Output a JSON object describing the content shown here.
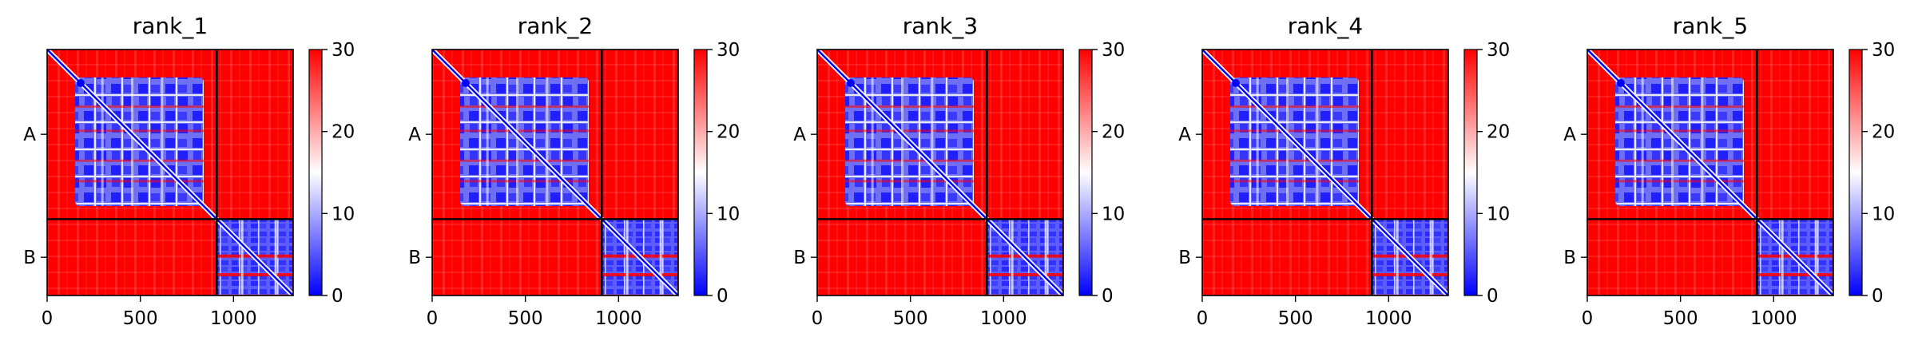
{
  "chart_data": [
    {
      "type": "heatmap",
      "title": "rank_1",
      "x_ticks": [
        0,
        500,
        1000
      ],
      "xlim": [
        0,
        1320
      ],
      "y_tick_labels": [
        "A",
        "B"
      ],
      "chain_boundary": 910,
      "seq_length": 1320,
      "colorbar": {
        "min": 0,
        "max": 30,
        "ticks": [
          0,
          10,
          20,
          30
        ],
        "colormap": "bwr"
      }
    },
    {
      "type": "heatmap",
      "title": "rank_2",
      "x_ticks": [
        0,
        500,
        1000
      ],
      "xlim": [
        0,
        1320
      ],
      "y_tick_labels": [
        "A",
        "B"
      ],
      "chain_boundary": 910,
      "seq_length": 1320,
      "colorbar": {
        "min": 0,
        "max": 30,
        "ticks": [
          0,
          10,
          20,
          30
        ],
        "colormap": "bwr"
      }
    },
    {
      "type": "heatmap",
      "title": "rank_3",
      "x_ticks": [
        0,
        500,
        1000
      ],
      "xlim": [
        0,
        1320
      ],
      "y_tick_labels": [
        "A",
        "B"
      ],
      "chain_boundary": 910,
      "seq_length": 1320,
      "colorbar": {
        "min": 0,
        "max": 30,
        "ticks": [
          0,
          10,
          20,
          30
        ],
        "colormap": "bwr"
      }
    },
    {
      "type": "heatmap",
      "title": "rank_4",
      "x_ticks": [
        0,
        500,
        1000
      ],
      "xlim": [
        0,
        1320
      ],
      "y_tick_labels": [
        "A",
        "B"
      ],
      "chain_boundary": 910,
      "seq_length": 1320,
      "colorbar": {
        "min": 0,
        "max": 30,
        "ticks": [
          0,
          10,
          20,
          30
        ],
        "colormap": "bwr"
      }
    },
    {
      "type": "heatmap",
      "title": "rank_5",
      "x_ticks": [
        0,
        500,
        1000
      ],
      "xlim": [
        0,
        1320
      ],
      "y_tick_labels": [
        "A",
        "B"
      ],
      "chain_boundary": 910,
      "seq_length": 1320,
      "colorbar": {
        "min": 0,
        "max": 30,
        "ticks": [
          0,
          10,
          20,
          30
        ],
        "colormap": "bwr"
      }
    }
  ],
  "colors": {
    "high": "#ff0000",
    "mid": "#ffffff",
    "low": "#0000ff",
    "divider": "#000000"
  }
}
